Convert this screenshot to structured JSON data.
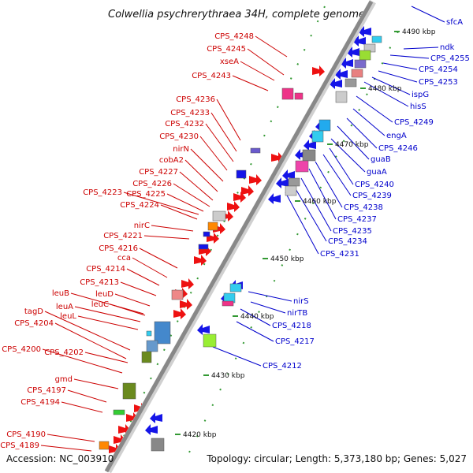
{
  "title": "Colwellia psychrerythraea 34H, complete genome",
  "footer": {
    "accession": "Accession: NC_003910",
    "stats": "Topology: circular; Length: 5,373,180 bp; Genes: 5,027"
  },
  "colors": {
    "left_label": "#cc0000",
    "right_label": "#0000cc",
    "backbone": "#888888",
    "tick": "#339933"
  },
  "kbp_markers": [
    "4490 kbp",
    "4480 kbp",
    "4470 kbp",
    "4460 kbp",
    "4450 kbp",
    "4440 kbp",
    "4430 kbp",
    "4420 kbp"
  ],
  "left_genes": [
    "CPS_4248",
    "CPS_4245",
    "xseA",
    "CPS_4243",
    "CPS_4236",
    "CPS_4233",
    "CPS_4232",
    "CPS_4230",
    "nirN",
    "cobA2",
    "CPS_4227",
    "CPS_4226",
    "CPS_4223",
    "CPS_4225",
    "CPS_4224",
    "nirC",
    "CPS_4221",
    "CPS_4216",
    "cca",
    "CPS_4214",
    "CPS_4213",
    "leuB",
    "leuD",
    "tagD",
    "leuA",
    "leuC",
    "CPS_4204",
    "leuL",
    "CPS_4200",
    "CPS_4202",
    "gmd",
    "CPS_4197",
    "CPS_4194",
    "CPS_4190",
    "CPS_4189"
  ],
  "right_genes": [
    "sfcA",
    "ndk",
    "CPS_4255",
    "CPS_4254",
    "CPS_4253",
    "ispG",
    "hisS",
    "CPS_4249",
    "engA",
    "CPS_4246",
    "guaB",
    "guaA",
    "CPS_4240",
    "CPS_4239",
    "CPS_4238",
    "CPS_4237",
    "CPS_4235",
    "CPS_4234",
    "CPS_4231",
    "nirS",
    "nirTB",
    "CPS_4218",
    "CPS_4217",
    "CPS_4212"
  ]
}
